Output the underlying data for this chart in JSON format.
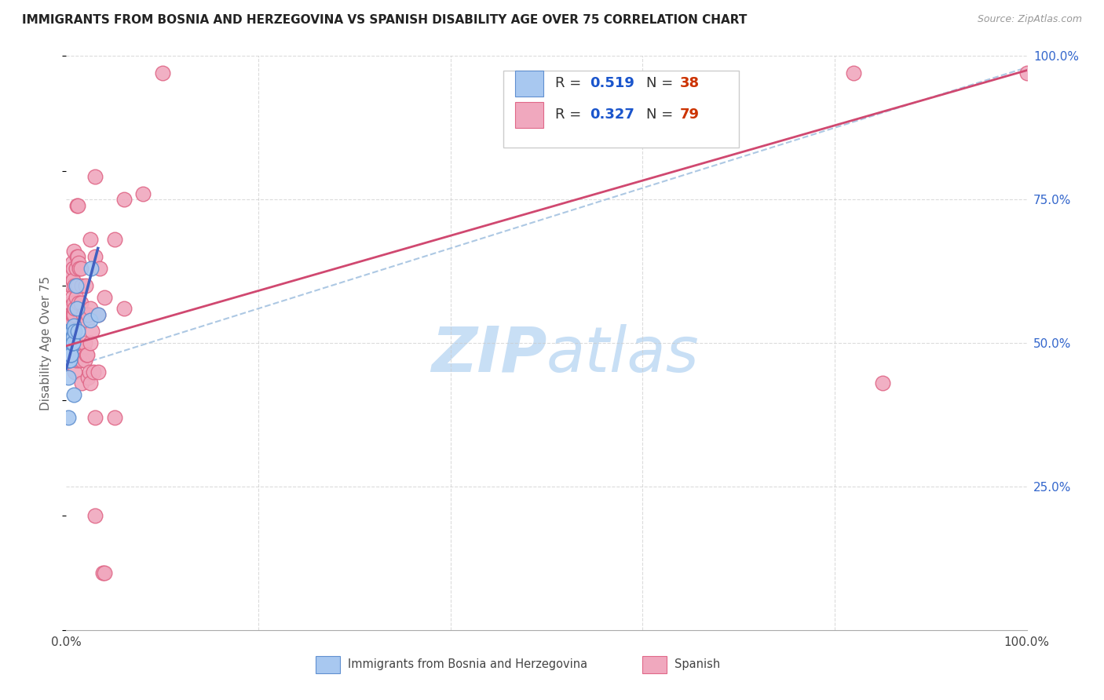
{
  "title": "IMMIGRANTS FROM BOSNIA AND HERZEGOVINA VS SPANISH DISABILITY AGE OVER 75 CORRELATION CHART",
  "source": "Source: ZipAtlas.com",
  "ylabel": "Disability Age Over 75",
  "xlim": [
    0,
    1.0
  ],
  "ylim": [
    0,
    1.0
  ],
  "xticklabels_show": [
    "0.0%",
    "100.0%"
  ],
  "xticklabels_pos": [
    0.0,
    1.0
  ],
  "ytick_labels_right": [
    "100.0%",
    "75.0%",
    "50.0%",
    "25.0%"
  ],
  "ytick_positions_right": [
    1.0,
    0.75,
    0.5,
    0.25
  ],
  "legend_R1": "0.519",
  "legend_N1": "38",
  "legend_R2": "0.327",
  "legend_N2": "79",
  "color_blue_fill": "#a8c8f0",
  "color_pink_fill": "#f0a8be",
  "color_blue_edge": "#6090d0",
  "color_pink_edge": "#e06888",
  "color_blue_line": "#4060c0",
  "color_pink_line": "#d04870",
  "color_blue_text": "#1a55cc",
  "color_N_text": "#cc3300",
  "color_right_axis": "#3366cc",
  "watermark_color": "#c8dff5",
  "grid_color": "#cccccc",
  "background_color": "#ffffff",
  "bosnia_points": [
    [
      0.002,
      0.44
    ],
    [
      0.002,
      0.52
    ],
    [
      0.003,
      0.52
    ],
    [
      0.003,
      0.5
    ],
    [
      0.003,
      0.48
    ],
    [
      0.003,
      0.47
    ],
    [
      0.003,
      0.47
    ],
    [
      0.004,
      0.51
    ],
    [
      0.004,
      0.5
    ],
    [
      0.004,
      0.49
    ],
    [
      0.004,
      0.48
    ],
    [
      0.004,
      0.48
    ],
    [
      0.004,
      0.47
    ],
    [
      0.005,
      0.52
    ],
    [
      0.005,
      0.51
    ],
    [
      0.005,
      0.5
    ],
    [
      0.005,
      0.5
    ],
    [
      0.005,
      0.49
    ],
    [
      0.005,
      0.49
    ],
    [
      0.005,
      0.48
    ],
    [
      0.005,
      0.48
    ],
    [
      0.006,
      0.52
    ],
    [
      0.006,
      0.51
    ],
    [
      0.006,
      0.5
    ],
    [
      0.006,
      0.5
    ],
    [
      0.006,
      0.5
    ],
    [
      0.007,
      0.51
    ],
    [
      0.007,
      0.5
    ],
    [
      0.008,
      0.53
    ],
    [
      0.008,
      0.41
    ],
    [
      0.009,
      0.52
    ],
    [
      0.01,
      0.6
    ],
    [
      0.011,
      0.56
    ],
    [
      0.012,
      0.52
    ],
    [
      0.025,
      0.54
    ],
    [
      0.026,
      0.63
    ],
    [
      0.033,
      0.55
    ],
    [
      0.002,
      0.37
    ]
  ],
  "spanish_points": [
    [
      0.003,
      0.5
    ],
    [
      0.004,
      0.55
    ],
    [
      0.004,
      0.52
    ],
    [
      0.005,
      0.6
    ],
    [
      0.005,
      0.57
    ],
    [
      0.005,
      0.55
    ],
    [
      0.005,
      0.54
    ],
    [
      0.005,
      0.5
    ],
    [
      0.006,
      0.64
    ],
    [
      0.006,
      0.62
    ],
    [
      0.006,
      0.6
    ],
    [
      0.006,
      0.58
    ],
    [
      0.006,
      0.55
    ],
    [
      0.006,
      0.52
    ],
    [
      0.007,
      0.63
    ],
    [
      0.007,
      0.61
    ],
    [
      0.007,
      0.55
    ],
    [
      0.007,
      0.52
    ],
    [
      0.008,
      0.66
    ],
    [
      0.008,
      0.57
    ],
    [
      0.008,
      0.55
    ],
    [
      0.008,
      0.5
    ],
    [
      0.008,
      0.48
    ],
    [
      0.009,
      0.6
    ],
    [
      0.009,
      0.56
    ],
    [
      0.009,
      0.45
    ],
    [
      0.01,
      0.63
    ],
    [
      0.01,
      0.58
    ],
    [
      0.01,
      0.5
    ],
    [
      0.01,
      0.47
    ],
    [
      0.011,
      0.74
    ],
    [
      0.011,
      0.65
    ],
    [
      0.012,
      0.74
    ],
    [
      0.012,
      0.65
    ],
    [
      0.012,
      0.6
    ],
    [
      0.013,
      0.64
    ],
    [
      0.013,
      0.57
    ],
    [
      0.014,
      0.63
    ],
    [
      0.014,
      0.47
    ],
    [
      0.015,
      0.63
    ],
    [
      0.015,
      0.57
    ],
    [
      0.016,
      0.6
    ],
    [
      0.016,
      0.47
    ],
    [
      0.016,
      0.43
    ],
    [
      0.018,
      0.55
    ],
    [
      0.019,
      0.5
    ],
    [
      0.019,
      0.47
    ],
    [
      0.02,
      0.6
    ],
    [
      0.021,
      0.48
    ],
    [
      0.022,
      0.54
    ],
    [
      0.022,
      0.48
    ],
    [
      0.023,
      0.55
    ],
    [
      0.023,
      0.44
    ],
    [
      0.024,
      0.45
    ],
    [
      0.025,
      0.68
    ],
    [
      0.025,
      0.56
    ],
    [
      0.025,
      0.5
    ],
    [
      0.025,
      0.43
    ],
    [
      0.027,
      0.52
    ],
    [
      0.028,
      0.45
    ],
    [
      0.03,
      0.79
    ],
    [
      0.03,
      0.65
    ],
    [
      0.03,
      0.37
    ],
    [
      0.03,
      0.2
    ],
    [
      0.033,
      0.55
    ],
    [
      0.033,
      0.45
    ],
    [
      0.035,
      0.63
    ],
    [
      0.038,
      0.1
    ],
    [
      0.04,
      0.58
    ],
    [
      0.04,
      0.1
    ],
    [
      0.05,
      0.68
    ],
    [
      0.05,
      0.37
    ],
    [
      0.06,
      0.75
    ],
    [
      0.06,
      0.56
    ],
    [
      0.08,
      0.76
    ],
    [
      0.1,
      0.97
    ],
    [
      0.82,
      0.97
    ],
    [
      0.85,
      0.43
    ],
    [
      1.0,
      0.97
    ]
  ],
  "blue_trend_x": [
    0.0,
    0.033
  ],
  "blue_trend_y": [
    0.455,
    0.665
  ],
  "pink_trend_x": [
    0.0,
    1.0
  ],
  "pink_trend_y": [
    0.495,
    0.975
  ],
  "dashed_trend_x": [
    0.0,
    1.0
  ],
  "dashed_trend_y": [
    0.455,
    0.98
  ]
}
